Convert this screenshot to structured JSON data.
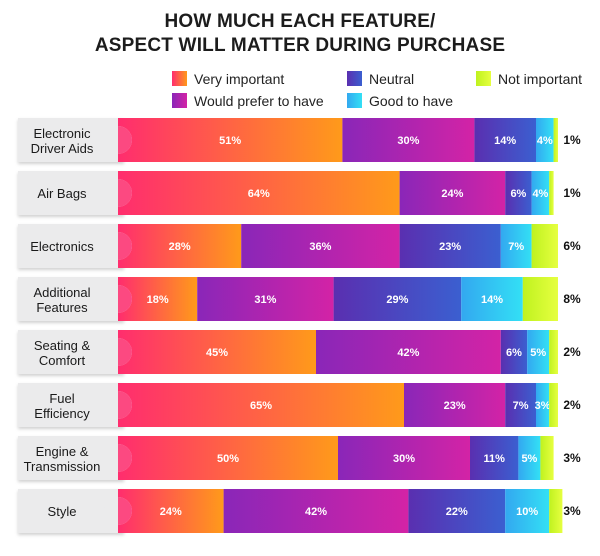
{
  "chart_data": {
    "type": "bar",
    "orientation": "horizontal",
    "stacked": true,
    "title": [
      "HOW MUCH EACH FEATURE/",
      "ASPECT WILL MATTER DURING PURCHASE"
    ],
    "categories": [
      [
        "Electronic",
        "Driver Aids"
      ],
      [
        "Air Bags"
      ],
      [
        "Electronics"
      ],
      [
        "Additional",
        "Features"
      ],
      [
        "Seating &",
        "Comfort"
      ],
      [
        "Fuel",
        "Efficiency"
      ],
      [
        "Engine &",
        "Transmission"
      ],
      [
        "Style"
      ]
    ],
    "series": [
      {
        "name": "Very important",
        "values": [
          51,
          64,
          28,
          18,
          45,
          65,
          50,
          24
        ],
        "color_start": "#ff2d6e",
        "color_end": "#ff9a1a"
      },
      {
        "name": "Would prefer to have",
        "values": [
          30,
          24,
          36,
          31,
          42,
          23,
          30,
          42
        ],
        "color_start": "#8a26b8",
        "color_end": "#d323a6"
      },
      {
        "name": "Neutral",
        "values": [
          14,
          6,
          23,
          29,
          6,
          7,
          11,
          22
        ],
        "color_start": "#5a2fb0",
        "color_end": "#3b5fd0"
      },
      {
        "name": "Good to have",
        "values": [
          4,
          4,
          7,
          14,
          5,
          3,
          5,
          10
        ],
        "color_start": "#33a8f0",
        "color_end": "#33e0f5"
      },
      {
        "name": "Not important",
        "values": [
          1,
          1,
          6,
          8,
          2,
          2,
          3,
          3
        ],
        "color_start": "#bff21f",
        "color_end": "#e6ff40"
      }
    ],
    "xlim": [
      0,
      100
    ],
    "unit": "%"
  }
}
